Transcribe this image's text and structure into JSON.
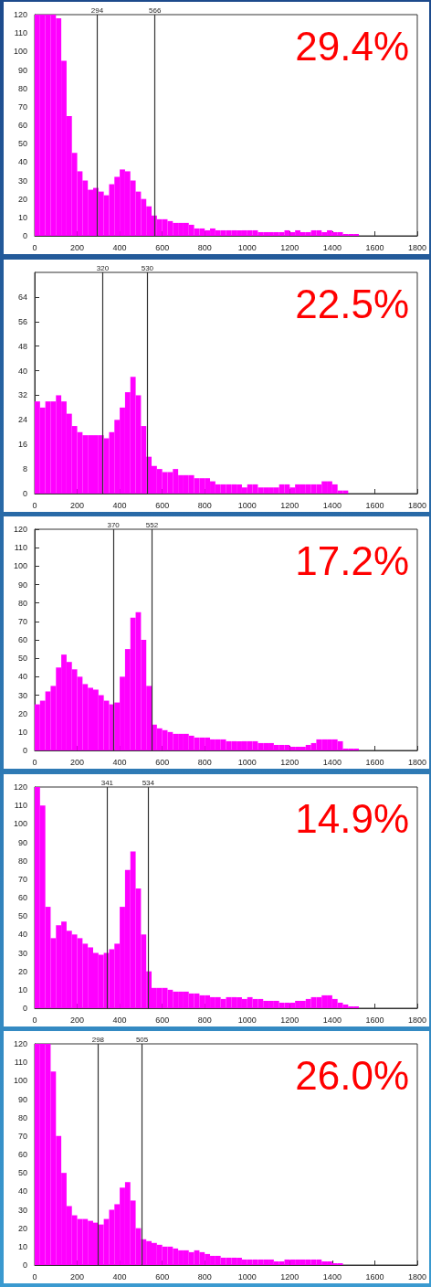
{
  "chart_data": [
    {
      "type": "histogram",
      "color": "#ff00ff",
      "grid": false,
      "xlim": [
        0,
        1800
      ],
      "xticks": [
        0,
        200,
        400,
        600,
        800,
        1000,
        1200,
        1400,
        1600,
        1800
      ],
      "ylim": [
        0,
        120
      ],
      "yticks": [
        0,
        10,
        20,
        30,
        40,
        50,
        60,
        70,
        80,
        90,
        100,
        110,
        120
      ],
      "bins": [
        0,
        25,
        50,
        75,
        100,
        125,
        150,
        175,
        200,
        225,
        250,
        275,
        300,
        325,
        350,
        375,
        400,
        425,
        450,
        475,
        500,
        525,
        550,
        575,
        600,
        625,
        650,
        675,
        700,
        725,
        750,
        775,
        800,
        825,
        850,
        875,
        900,
        925,
        950,
        975,
        1000,
        1025,
        1050,
        1075,
        1100,
        1125,
        1150,
        1175,
        1200,
        1225,
        1250,
        1275,
        1300,
        1325,
        1350,
        1375,
        1400,
        1425,
        1450,
        1475,
        1500,
        1525,
        1550,
        1575,
        1600,
        1625,
        1650,
        1675,
        1700,
        1725,
        1750,
        1775,
        1800
      ],
      "values": [
        120,
        120,
        120,
        120,
        118,
        95,
        65,
        45,
        35,
        30,
        25,
        26,
        24,
        22,
        28,
        32,
        36,
        35,
        30,
        24,
        20,
        16,
        11,
        9,
        9,
        8,
        7,
        7,
        7,
        6,
        4,
        4,
        3,
        4,
        3,
        3,
        3,
        3,
        3,
        3,
        3,
        3,
        2,
        2,
        2,
        2,
        2,
        3,
        2,
        3,
        2,
        2,
        3,
        3,
        2,
        3,
        2,
        2,
        1,
        1,
        1,
        0,
        0,
        0,
        0,
        0,
        0,
        0,
        0,
        0,
        0,
        0
      ],
      "ref_lines": [
        {
          "axis": "x",
          "value": 294,
          "label": "294",
          "color": "#333333"
        },
        {
          "axis": "x",
          "value": 566,
          "label": "566",
          "color": "#333333"
        }
      ],
      "annotations": [
        "29.4%"
      ]
    },
    {
      "type": "histogram",
      "color": "#ff00ff",
      "grid": false,
      "xlim": [
        0,
        1800
      ],
      "xticks": [
        0,
        200,
        400,
        600,
        800,
        1000,
        1200,
        1400,
        1600,
        1800
      ],
      "ylim": [
        0,
        72
      ],
      "yticks": [
        0,
        8,
        16,
        24,
        32,
        40,
        48,
        56,
        64
      ],
      "bins": [
        0,
        25,
        50,
        75,
        100,
        125,
        150,
        175,
        200,
        225,
        250,
        275,
        300,
        325,
        350,
        375,
        400,
        425,
        450,
        475,
        500,
        525,
        550,
        575,
        600,
        625,
        650,
        675,
        700,
        725,
        750,
        775,
        800,
        825,
        850,
        875,
        900,
        925,
        950,
        975,
        1000,
        1025,
        1050,
        1075,
        1100,
        1125,
        1150,
        1175,
        1200,
        1225,
        1250,
        1275,
        1300,
        1325,
        1350,
        1375,
        1400,
        1425,
        1450,
        1475,
        1500,
        1525,
        1550,
        1575,
        1600,
        1625,
        1650,
        1675,
        1700,
        1725,
        1750,
        1775,
        1800
      ],
      "values": [
        30,
        28,
        30,
        30,
        32,
        30,
        26,
        22,
        20,
        19,
        19,
        19,
        19,
        18,
        20,
        24,
        28,
        33,
        38,
        32,
        22,
        12,
        9,
        8,
        7,
        7,
        8,
        6,
        6,
        6,
        5,
        5,
        5,
        4,
        3,
        3,
        3,
        3,
        3,
        2,
        3,
        3,
        2,
        2,
        2,
        2,
        3,
        3,
        2,
        3,
        3,
        3,
        3,
        3,
        4,
        4,
        3,
        1,
        1,
        0,
        0,
        0,
        0,
        0,
        0,
        0,
        0,
        0,
        0,
        0,
        0,
        0
      ],
      "ref_lines": [
        {
          "axis": "x",
          "value": 320,
          "label": "320",
          "color": "#333333"
        },
        {
          "axis": "x",
          "value": 530,
          "label": "530",
          "color": "#333333"
        }
      ],
      "annotations": [
        "22.5%"
      ]
    },
    {
      "type": "histogram",
      "color": "#ff00ff",
      "grid": false,
      "xlim": [
        0,
        1800
      ],
      "xticks": [
        0,
        200,
        400,
        600,
        800,
        1000,
        1200,
        1400,
        1600,
        1800
      ],
      "ylim": [
        0,
        120
      ],
      "yticks": [
        0,
        10,
        20,
        30,
        40,
        50,
        60,
        70,
        80,
        90,
        100,
        110,
        120
      ],
      "bins": [
        0,
        25,
        50,
        75,
        100,
        125,
        150,
        175,
        200,
        225,
        250,
        275,
        300,
        325,
        350,
        375,
        400,
        425,
        450,
        475,
        500,
        525,
        550,
        575,
        600,
        625,
        650,
        675,
        700,
        725,
        750,
        775,
        800,
        825,
        850,
        875,
        900,
        925,
        950,
        975,
        1000,
        1025,
        1050,
        1075,
        1100,
        1125,
        1150,
        1175,
        1200,
        1225,
        1250,
        1275,
        1300,
        1325,
        1350,
        1375,
        1400,
        1425,
        1450,
        1475,
        1500,
        1525,
        1550,
        1575,
        1600,
        1625,
        1650,
        1675,
        1700,
        1725,
        1750,
        1775,
        1800
      ],
      "values": [
        25,
        27,
        32,
        35,
        45,
        52,
        48,
        44,
        40,
        36,
        34,
        33,
        30,
        27,
        25,
        26,
        40,
        55,
        72,
        75,
        60,
        35,
        14,
        12,
        11,
        10,
        9,
        9,
        9,
        8,
        7,
        7,
        7,
        6,
        6,
        6,
        5,
        5,
        5,
        5,
        5,
        5,
        4,
        4,
        4,
        3,
        3,
        3,
        2,
        2,
        2,
        3,
        4,
        6,
        6,
        6,
        6,
        5,
        1,
        1,
        1,
        0,
        0,
        0,
        0,
        0,
        0,
        0,
        0,
        0,
        0,
        0
      ],
      "ref_lines": [
        {
          "axis": "x",
          "value": 370,
          "label": "370",
          "color": "#333333"
        },
        {
          "axis": "x",
          "value": 552,
          "label": "552",
          "color": "#333333"
        }
      ],
      "annotations": [
        "17.2%"
      ]
    },
    {
      "type": "histogram",
      "color": "#ff00ff",
      "grid": false,
      "xlim": [
        0,
        1800
      ],
      "xticks": [
        0,
        200,
        400,
        600,
        800,
        1000,
        1200,
        1400,
        1600,
        1800
      ],
      "ylim": [
        0,
        120
      ],
      "yticks": [
        0,
        10,
        20,
        30,
        40,
        50,
        60,
        70,
        80,
        90,
        100,
        110,
        120
      ],
      "bins": [
        0,
        25,
        50,
        75,
        100,
        125,
        150,
        175,
        200,
        225,
        250,
        275,
        300,
        325,
        350,
        375,
        400,
        425,
        450,
        475,
        500,
        525,
        550,
        575,
        600,
        625,
        650,
        675,
        700,
        725,
        750,
        775,
        800,
        825,
        850,
        875,
        900,
        925,
        950,
        975,
        1000,
        1025,
        1050,
        1075,
        1100,
        1125,
        1150,
        1175,
        1200,
        1225,
        1250,
        1275,
        1300,
        1325,
        1350,
        1375,
        1400,
        1425,
        1450,
        1475,
        1500,
        1525,
        1550,
        1575,
        1600,
        1625,
        1650,
        1675,
        1700,
        1725,
        1750,
        1775,
        1800
      ],
      "values": [
        120,
        110,
        55,
        38,
        45,
        47,
        42,
        40,
        38,
        35,
        33,
        30,
        29,
        30,
        32,
        35,
        55,
        75,
        85,
        65,
        40,
        20,
        11,
        11,
        11,
        10,
        9,
        9,
        9,
        8,
        8,
        7,
        7,
        6,
        6,
        5,
        6,
        6,
        6,
        5,
        6,
        5,
        5,
        4,
        4,
        4,
        3,
        3,
        3,
        4,
        4,
        5,
        6,
        6,
        7,
        7,
        5,
        3,
        2,
        1,
        1,
        0,
        0,
        0,
        0,
        0,
        0,
        0,
        0,
        0,
        0,
        0
      ],
      "ref_lines": [
        {
          "axis": "x",
          "value": 341,
          "label": "341",
          "color": "#333333"
        },
        {
          "axis": "x",
          "value": 534,
          "label": "534",
          "color": "#333333"
        }
      ],
      "annotations": [
        "14.9%"
      ]
    },
    {
      "type": "histogram",
      "color": "#ff00ff",
      "grid": false,
      "xlim": [
        0,
        1800
      ],
      "xticks": [
        0,
        200,
        400,
        600,
        800,
        1000,
        1200,
        1400,
        1600,
        1800
      ],
      "ylim": [
        0,
        120
      ],
      "yticks": [
        0,
        10,
        20,
        30,
        40,
        50,
        60,
        70,
        80,
        90,
        100,
        110,
        120
      ],
      "bins": [
        0,
        25,
        50,
        75,
        100,
        125,
        150,
        175,
        200,
        225,
        250,
        275,
        300,
        325,
        350,
        375,
        400,
        425,
        450,
        475,
        500,
        525,
        550,
        575,
        600,
        625,
        650,
        675,
        700,
        725,
        750,
        775,
        800,
        825,
        850,
        875,
        900,
        925,
        950,
        975,
        1000,
        1025,
        1050,
        1075,
        1100,
        1125,
        1150,
        1175,
        1200,
        1225,
        1250,
        1275,
        1300,
        1325,
        1350,
        1375,
        1400,
        1425,
        1450,
        1475,
        1500,
        1525,
        1550,
        1575,
        1600,
        1625,
        1650,
        1675,
        1700,
        1725,
        1750,
        1775,
        1800
      ],
      "values": [
        120,
        120,
        120,
        105,
        70,
        50,
        32,
        27,
        25,
        25,
        24,
        23,
        22,
        25,
        30,
        33,
        42,
        45,
        35,
        20,
        14,
        13,
        12,
        11,
        10,
        10,
        9,
        8,
        8,
        7,
        8,
        7,
        6,
        5,
        5,
        4,
        4,
        4,
        4,
        3,
        3,
        3,
        3,
        3,
        3,
        2,
        2,
        3,
        3,
        3,
        3,
        3,
        3,
        3,
        2,
        2,
        1,
        1,
        0,
        0,
        0,
        0,
        0,
        0,
        0,
        0,
        0,
        0,
        0,
        0,
        0,
        0
      ],
      "ref_lines": [
        {
          "axis": "x",
          "value": 298,
          "label": "298",
          "color": "#333333"
        },
        {
          "axis": "x",
          "value": 505,
          "label": "505",
          "color": "#333333"
        }
      ],
      "annotations": [
        "26.0%"
      ]
    }
  ]
}
